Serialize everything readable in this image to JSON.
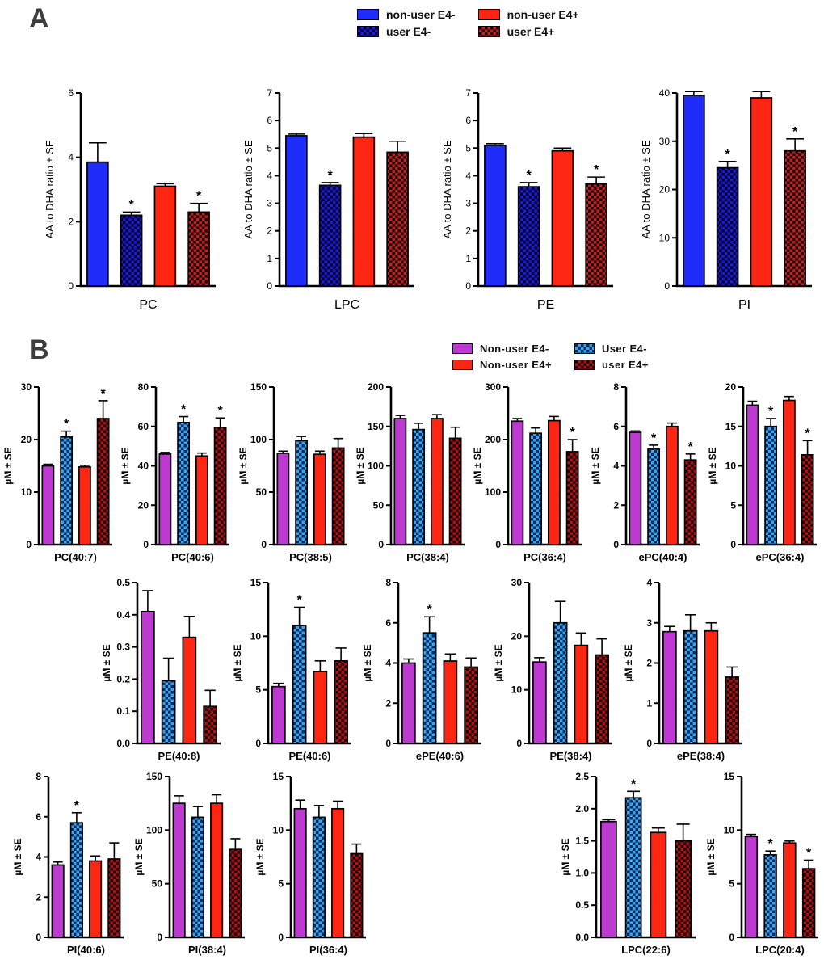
{
  "figure": {
    "panel_a_label": "A",
    "panel_b_label": "B"
  },
  "legend_a": {
    "items": [
      {
        "label": "non-user E4-",
        "style": "solid",
        "c1": "#1f2cfa"
      },
      {
        "label": "non-user E4+",
        "style": "solid",
        "c1": "#fd2612"
      },
      {
        "label": "user E4-",
        "style": "checker",
        "c1": "#1b1bd2",
        "c2": "#00002e"
      },
      {
        "label": "user E4+",
        "style": "checker",
        "c1": "#c02020",
        "c2": "#180000"
      }
    ]
  },
  "legend_b": {
    "items": [
      {
        "label": "Non-user E4-",
        "style": "solid",
        "c1": "#bd3ad0"
      },
      {
        "label": "User E4-",
        "style": "checker",
        "c1": "#38a6e8",
        "c2": "#0a2a62"
      },
      {
        "label": "Non-user E4+",
        "style": "solid",
        "c1": "#fd2612"
      },
      {
        "label": "user E4+",
        "style": "checker",
        "c1": "#ae1212",
        "c2": "#1a0000"
      }
    ]
  },
  "series_styles_a": [
    {
      "name": "non-user E4-",
      "style": "solid",
      "c1": "#1f2cfa"
    },
    {
      "name": "user E4-",
      "style": "checker",
      "c1": "#1b1bd2",
      "c2": "#00002e"
    },
    {
      "name": "non-user E4+",
      "style": "solid",
      "c1": "#fd2612"
    },
    {
      "name": "user E4+",
      "style": "checker",
      "c1": "#c02020",
      "c2": "#180000"
    }
  ],
  "series_styles_b": [
    {
      "name": "Non-user E4-",
      "style": "solid",
      "c1": "#bd3ad0"
    },
    {
      "name": "User E4-",
      "style": "checker",
      "c1": "#38a6e8",
      "c2": "#0a2a62"
    },
    {
      "name": "Non-user E4+",
      "style": "solid",
      "c1": "#fd2612"
    },
    {
      "name": "user E4+",
      "style": "checker",
      "c1": "#ae1212",
      "c2": "#1a0000"
    }
  ],
  "chart_data": [
    {
      "type": "bar",
      "group": "A",
      "label": "PC",
      "ylabel": "AA to DHA ratio ± SE",
      "ylim": [
        0,
        6
      ],
      "yticks": [
        "0",
        "2",
        "4",
        "6"
      ],
      "values": [
        3.85,
        2.2,
        3.1,
        2.3
      ],
      "errors": [
        0.6,
        0.1,
        0.08,
        0.27
      ],
      "sig": [
        0,
        1,
        0,
        1
      ]
    },
    {
      "type": "bar",
      "group": "A",
      "label": "LPC",
      "ylabel": "AA to DHA ratio ± SE",
      "ylim": [
        0,
        7
      ],
      "yticks": [
        "0",
        "1",
        "2",
        "3",
        "4",
        "5",
        "6",
        "7"
      ],
      "values": [
        5.45,
        3.65,
        5.4,
        4.85
      ],
      "errors": [
        0.06,
        0.1,
        0.13,
        0.4
      ],
      "sig": [
        0,
        1,
        0,
        0
      ]
    },
    {
      "type": "bar",
      "group": "A",
      "label": "PE",
      "ylabel": "AA to DHA ratio ± SE",
      "ylim": [
        0,
        7
      ],
      "yticks": [
        "0",
        "1",
        "2",
        "3",
        "4",
        "5",
        "6",
        "7"
      ],
      "values": [
        5.1,
        3.6,
        4.9,
        3.7
      ],
      "errors": [
        0.06,
        0.15,
        0.1,
        0.25
      ],
      "sig": [
        0,
        1,
        0,
        1
      ]
    },
    {
      "type": "bar",
      "group": "A",
      "label": "PI",
      "ylabel": "AA to DHA ratio ± SE",
      "ylim": [
        0,
        40
      ],
      "yticks": [
        "0",
        "10",
        "20",
        "30",
        "40"
      ],
      "values": [
        39.5,
        24.5,
        39.0,
        28.0
      ],
      "errors": [
        0.8,
        1.3,
        1.3,
        2.5
      ],
      "sig": [
        0,
        1,
        0,
        1
      ]
    },
    {
      "type": "bar",
      "group": "B1",
      "label": "PC(40:7)",
      "ylabel": "µM ± SE",
      "ylim": [
        0,
        30
      ],
      "yticks": [
        "0",
        "10",
        "20",
        "30"
      ],
      "values": [
        15.0,
        20.5,
        14.8,
        24.0
      ],
      "errors": [
        0.3,
        1.1,
        0.3,
        3.4
      ],
      "sig": [
        0,
        1,
        0,
        1
      ]
    },
    {
      "type": "bar",
      "group": "B1",
      "label": "PC(40:6)",
      "ylabel": "µM ± SE",
      "ylim": [
        0,
        80
      ],
      "yticks": [
        "0",
        "20",
        "40",
        "60",
        "80"
      ],
      "values": [
        46.0,
        62.0,
        45.0,
        59.5
      ],
      "errors": [
        0.8,
        3.0,
        1.5,
        4.8
      ],
      "sig": [
        0,
        1,
        0,
        1
      ]
    },
    {
      "type": "bar",
      "group": "B1",
      "label": "PC(38:5)",
      "ylabel": "µM ± SE",
      "ylim": [
        0,
        150
      ],
      "yticks": [
        "0",
        "50",
        "100",
        "150"
      ],
      "values": [
        87.0,
        99.0,
        86.0,
        92.0
      ],
      "errors": [
        2.0,
        4.0,
        3.0,
        9.0
      ],
      "sig": [
        0,
        0,
        0,
        0
      ]
    },
    {
      "type": "bar",
      "group": "B1",
      "label": "PC(38:4)",
      "ylabel": "µM ± SE",
      "ylim": [
        0,
        200
      ],
      "yticks": [
        "0",
        "50",
        "100",
        "150",
        "200"
      ],
      "values": [
        160.0,
        146.0,
        160.0,
        135.0
      ],
      "errors": [
        4.0,
        8.0,
        5.0,
        14.0
      ],
      "sig": [
        0,
        0,
        0,
        0
      ]
    },
    {
      "type": "bar",
      "group": "B1",
      "label": "PC(36:4)",
      "ylabel": "µM ± SE",
      "ylim": [
        0,
        300
      ],
      "yticks": [
        "0",
        "100",
        "200",
        "300"
      ],
      "values": [
        235.0,
        212.0,
        236.0,
        177.0
      ],
      "errors": [
        5.0,
        10.0,
        8.0,
        23.0
      ],
      "sig": [
        0,
        0,
        0,
        1
      ]
    },
    {
      "type": "bar",
      "group": "B1",
      "label": "ePC(40:4)",
      "ylabel": "µM ± SE",
      "ylim": [
        0,
        8
      ],
      "yticks": [
        "0",
        "2",
        "4",
        "6",
        "8"
      ],
      "values": [
        5.7,
        4.85,
        6.0,
        4.3
      ],
      "errors": [
        0.07,
        0.2,
        0.17,
        0.3
      ],
      "sig": [
        0,
        1,
        0,
        1
      ]
    },
    {
      "type": "bar",
      "group": "B1",
      "label": "ePC(36:4)",
      "ylabel": "µM ± SE",
      "ylim": [
        0,
        20
      ],
      "yticks": [
        "0",
        "5",
        "10",
        "15",
        "20"
      ],
      "values": [
        17.7,
        15.0,
        18.3,
        11.4
      ],
      "errors": [
        0.5,
        1.0,
        0.5,
        1.8
      ],
      "sig": [
        0,
        1,
        0,
        1
      ]
    },
    {
      "type": "bar",
      "group": "B2",
      "label": "PE(40:8)",
      "ylabel": "µM ± SE",
      "ylim": [
        0,
        0.5
      ],
      "yticks": [
        "0.0",
        "0.1",
        "0.2",
        "0.3",
        "0.4",
        "0.5"
      ],
      "values": [
        0.41,
        0.195,
        0.33,
        0.115
      ],
      "errors": [
        0.065,
        0.07,
        0.065,
        0.05
      ],
      "sig": [
        0,
        0,
        0,
        0
      ]
    },
    {
      "type": "bar",
      "group": "B2",
      "label": "PE(40:6)",
      "ylabel": "µM ± SE",
      "ylim": [
        0,
        15
      ],
      "yticks": [
        "0",
        "5",
        "10",
        "15"
      ],
      "values": [
        5.3,
        11.0,
        6.7,
        7.7
      ],
      "errors": [
        0.3,
        1.7,
        1.0,
        1.2
      ],
      "sig": [
        0,
        1,
        0,
        0
      ]
    },
    {
      "type": "bar",
      "group": "B2",
      "label": "ePE(40:6)",
      "ylabel": "µM ± SE",
      "ylim": [
        0,
        8
      ],
      "yticks": [
        "0",
        "2",
        "4",
        "6",
        "8"
      ],
      "values": [
        4.0,
        5.5,
        4.1,
        3.8
      ],
      "errors": [
        0.2,
        0.8,
        0.35,
        0.45
      ],
      "sig": [
        0,
        1,
        0,
        0
      ]
    },
    {
      "type": "bar",
      "group": "B2",
      "label": "PE(38:4)",
      "ylabel": "µM ± SE",
      "ylim": [
        0,
        30
      ],
      "yticks": [
        "0",
        "10",
        "20",
        "30"
      ],
      "values": [
        15.2,
        22.5,
        18.3,
        16.5
      ],
      "errors": [
        0.8,
        4.0,
        2.3,
        3.0
      ],
      "sig": [
        0,
        0,
        0,
        0
      ]
    },
    {
      "type": "bar",
      "group": "B2",
      "label": "ePE(38:4)",
      "ylabel": "µM ± SE",
      "ylim": [
        0,
        4
      ],
      "yticks": [
        "0",
        "1",
        "2",
        "3",
        "4"
      ],
      "values": [
        2.78,
        2.8,
        2.8,
        1.65
      ],
      "errors": [
        0.13,
        0.4,
        0.2,
        0.25
      ],
      "sig": [
        0,
        0,
        0,
        0
      ]
    },
    {
      "type": "bar",
      "group": "B3a",
      "label": "PI(40:6)",
      "ylabel": "µM ± SE",
      "ylim": [
        0,
        8
      ],
      "yticks": [
        "0",
        "2",
        "4",
        "6",
        "8"
      ],
      "values": [
        3.6,
        5.7,
        3.8,
        3.9
      ],
      "errors": [
        0.15,
        0.5,
        0.25,
        0.8
      ],
      "sig": [
        0,
        1,
        0,
        0
      ]
    },
    {
      "type": "bar",
      "group": "B3a",
      "label": "PI(38:4)",
      "ylabel": "µM ± SE",
      "ylim": [
        0,
        150
      ],
      "yticks": [
        "0",
        "50",
        "100",
        "150"
      ],
      "values": [
        125.0,
        112.0,
        125.0,
        82.0
      ],
      "errors": [
        7.0,
        10.0,
        8.0,
        10.0
      ],
      "sig": [
        0,
        0,
        0,
        0
      ]
    },
    {
      "type": "bar",
      "group": "B3a",
      "label": "PI(36:4)",
      "ylabel": "µM ± SE",
      "ylim": [
        0,
        15
      ],
      "yticks": [
        "0",
        "5",
        "10",
        "15"
      ],
      "values": [
        12.0,
        11.2,
        12.0,
        7.8
      ],
      "errors": [
        0.8,
        1.1,
        0.7,
        0.9
      ],
      "sig": [
        0,
        0,
        0,
        0
      ]
    },
    {
      "type": "bar",
      "group": "B3b",
      "label": "LPC(22:6)",
      "ylabel": "µM ± SE",
      "ylim": [
        0,
        2.5
      ],
      "yticks": [
        "0.0",
        "0.5",
        "1.0",
        "1.5",
        "2.0",
        "2.5"
      ],
      "values": [
        1.8,
        2.17,
        1.63,
        1.5
      ],
      "errors": [
        0.03,
        0.1,
        0.07,
        0.26
      ],
      "sig": [
        0,
        1,
        0,
        0
      ]
    },
    {
      "type": "bar",
      "group": "B3b",
      "label": "LPC(20:4)",
      "ylabel": "µM ± SE",
      "ylim": [
        0,
        15
      ],
      "yticks": [
        "0",
        "5",
        "10",
        "15"
      ],
      "values": [
        9.4,
        7.7,
        8.8,
        6.4
      ],
      "errors": [
        0.2,
        0.35,
        0.18,
        0.8
      ],
      "sig": [
        0,
        1,
        0,
        1
      ]
    }
  ]
}
